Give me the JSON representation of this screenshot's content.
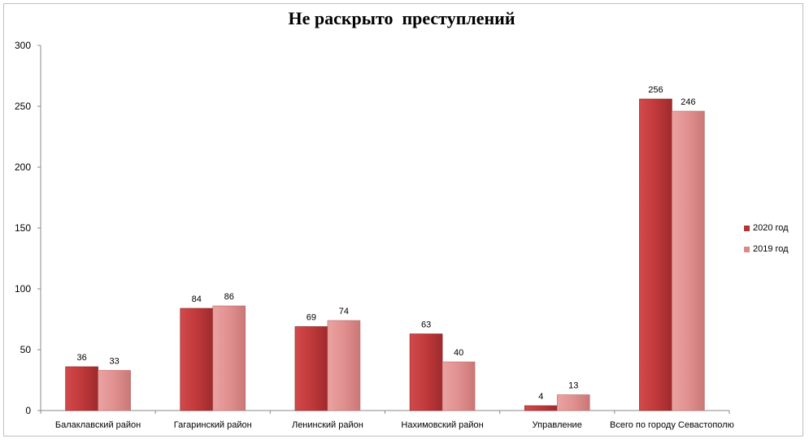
{
  "chart_data": {
    "type": "bar",
    "title": "Не раскрыто  преступлений",
    "categories": [
      "Балаклавский район",
      "Гагаринский район",
      "Ленинский район",
      "Нахимовский район",
      "Управление",
      "Всего по городу Севастополю"
    ],
    "series": [
      {
        "name": "2020 год",
        "values": [
          36,
          84,
          69,
          63,
          4,
          256
        ],
        "color": "#c0393b"
      },
      {
        "name": "2019 год",
        "values": [
          33,
          86,
          74,
          40,
          13,
          246
        ],
        "color": "#e0908f"
      }
    ],
    "ylim": [
      0,
      300
    ],
    "yticks": [
      "0",
      "50",
      "100",
      "150",
      "200",
      "250",
      "300"
    ],
    "legend_position": "right",
    "grid": false,
    "xlabel": "",
    "ylabel": ""
  }
}
